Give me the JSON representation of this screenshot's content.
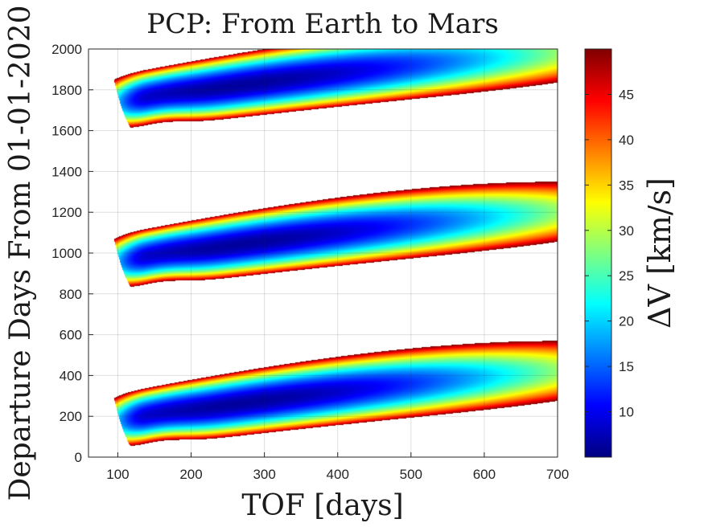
{
  "chart_data": {
    "type": "heatmap",
    "title": "PCP: From Earth to Mars",
    "xlabel": "TOF [days]",
    "ylabel": "Departure Days From 01-01-2020",
    "colorbar_label": "ΔV [km/s]",
    "colormap": "jet",
    "grid": true,
    "xlim": [
      60,
      700
    ],
    "ylim": [
      0,
      2000
    ],
    "clim": [
      5,
      50
    ],
    "x_ticks": [
      100,
      200,
      300,
      400,
      500,
      600,
      700
    ],
    "y_ticks": [
      0,
      200,
      400,
      600,
      800,
      1000,
      1200,
      1400,
      1600,
      1800,
      2000
    ],
    "colorbar_ticks": [
      10,
      15,
      20,
      25,
      30,
      35,
      40,
      45
    ],
    "synodic_period_days": 780,
    "bands": [
      {
        "min_dv_departure": 190,
        "min_dv_tof": 270,
        "min_dv": 6
      },
      {
        "min_dv_departure": 970,
        "min_dv_tof": 270,
        "min_dv": 6
      },
      {
        "min_dv_departure": 1750,
        "min_dv_tof": 270,
        "min_dv": 6
      }
    ],
    "gap_color": "#ffffff"
  }
}
